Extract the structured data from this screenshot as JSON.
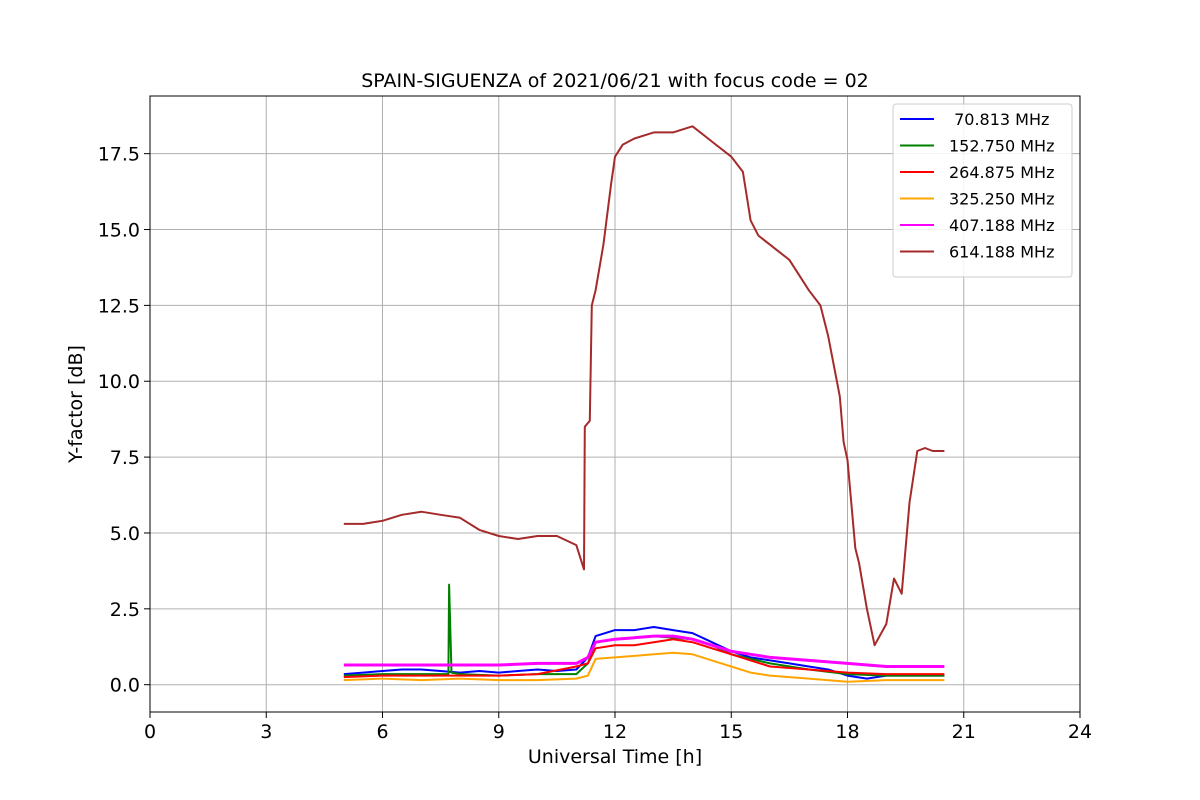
{
  "chart_data": {
    "type": "line",
    "title": "SPAIN-SIGUENZA of 2021/06/21 with focus code = 02",
    "xlabel": "Universal Time [h]",
    "ylabel": "Y-factor [dB]",
    "xlim": [
      0,
      24
    ],
    "ylim": [
      -0.9,
      19.4
    ],
    "x_ticks": [
      0,
      3,
      6,
      9,
      12,
      15,
      18,
      21,
      24
    ],
    "y_ticks": [
      0.0,
      2.5,
      5.0,
      7.5,
      10.0,
      12.5,
      15.0,
      17.5
    ],
    "x_tick_labels": [
      "0",
      "3",
      "6",
      "9",
      "12",
      "15",
      "18",
      "21",
      "24"
    ],
    "y_tick_labels": [
      "0.0",
      "2.5",
      "5.0",
      "7.5",
      "10.0",
      "12.5",
      "15.0",
      "17.5"
    ],
    "grid": true,
    "legend_position": "top-right",
    "series": [
      {
        "name": " 70.813 MHz",
        "color": "#0000ff",
        "x": [
          5.0,
          5.5,
          6.0,
          6.5,
          7.0,
          7.5,
          8.0,
          8.5,
          9.0,
          9.5,
          10.0,
          10.5,
          11.0,
          11.3,
          11.5,
          12.0,
          12.5,
          13.0,
          13.5,
          14.0,
          14.5,
          15.0,
          15.5,
          16.0,
          16.5,
          17.0,
          17.5,
          18.0,
          18.5,
          19.0,
          19.5,
          20.0,
          20.5
        ],
        "y": [
          0.35,
          0.4,
          0.45,
          0.5,
          0.5,
          0.45,
          0.4,
          0.45,
          0.4,
          0.45,
          0.5,
          0.45,
          0.5,
          0.9,
          1.6,
          1.8,
          1.8,
          1.9,
          1.8,
          1.7,
          1.4,
          1.1,
          0.9,
          0.8,
          0.7,
          0.6,
          0.5,
          0.3,
          0.2,
          0.3,
          0.3,
          0.3,
          0.3
        ]
      },
      {
        "name": "152.750 MHz",
        "color": "#008000",
        "x": [
          5.0,
          6.0,
          7.0,
          7.7,
          7.72,
          7.78,
          8.0,
          9.0,
          10.0,
          11.0,
          11.3,
          11.5,
          12.0,
          12.5,
          13.0,
          13.5,
          14.0,
          14.5,
          15.0,
          15.5,
          16.0,
          17.0,
          18.0,
          19.0,
          20.0,
          20.5
        ],
        "y": [
          0.3,
          0.35,
          0.35,
          0.35,
          3.3,
          0.4,
          0.35,
          0.3,
          0.35,
          0.35,
          0.7,
          1.4,
          1.5,
          1.55,
          1.6,
          1.55,
          1.5,
          1.3,
          1.0,
          0.85,
          0.7,
          0.5,
          0.35,
          0.3,
          0.3,
          0.3
        ]
      },
      {
        "name": "264.875 MHz",
        "color": "#ff0000",
        "x": [
          5.0,
          6.0,
          7.0,
          8.0,
          9.0,
          10.0,
          11.0,
          11.3,
          11.5,
          12.0,
          12.5,
          13.0,
          13.5,
          14.0,
          14.5,
          15.0,
          15.5,
          16.0,
          17.0,
          18.0,
          19.0,
          20.0,
          20.5
        ],
        "y": [
          0.25,
          0.3,
          0.3,
          0.3,
          0.3,
          0.35,
          0.6,
          0.7,
          1.2,
          1.3,
          1.3,
          1.4,
          1.5,
          1.4,
          1.2,
          1.0,
          0.8,
          0.6,
          0.5,
          0.4,
          0.35,
          0.35,
          0.35
        ]
      },
      {
        "name": "325.250 MHz",
        "color": "#ffa500",
        "x": [
          5.0,
          6.0,
          7.0,
          8.0,
          9.0,
          10.0,
          11.0,
          11.3,
          11.5,
          12.0,
          12.5,
          13.0,
          13.5,
          14.0,
          14.5,
          15.0,
          15.5,
          16.0,
          17.0,
          18.0,
          19.0,
          20.0,
          20.5
        ],
        "y": [
          0.15,
          0.2,
          0.15,
          0.2,
          0.15,
          0.15,
          0.2,
          0.3,
          0.85,
          0.9,
          0.95,
          1.0,
          1.05,
          1.0,
          0.8,
          0.6,
          0.4,
          0.3,
          0.2,
          0.1,
          0.15,
          0.15,
          0.15
        ]
      },
      {
        "name": "407.188 MHz",
        "color": "#ff00ff",
        "x": [
          5.0,
          6.0,
          7.0,
          8.0,
          9.0,
          10.0,
          11.0,
          11.3,
          11.5,
          12.0,
          12.5,
          13.0,
          13.5,
          14.0,
          14.5,
          15.0,
          15.5,
          16.0,
          17.0,
          18.0,
          19.0,
          20.0,
          20.5
        ],
        "y": [
          0.65,
          0.65,
          0.65,
          0.65,
          0.65,
          0.7,
          0.7,
          0.9,
          1.4,
          1.5,
          1.55,
          1.6,
          1.6,
          1.5,
          1.3,
          1.1,
          1.0,
          0.9,
          0.8,
          0.7,
          0.6,
          0.6,
          0.6
        ]
      },
      {
        "name": "614.188 MHz",
        "color": "#a52a2a",
        "x": [
          5.0,
          5.5,
          6.0,
          6.5,
          7.0,
          7.5,
          8.0,
          8.5,
          9.0,
          9.5,
          10.0,
          10.5,
          11.0,
          11.2,
          11.22,
          11.35,
          11.4,
          11.5,
          11.7,
          11.9,
          12.0,
          12.2,
          12.5,
          13.0,
          13.5,
          14.0,
          14.3,
          14.6,
          15.0,
          15.3,
          15.5,
          15.7,
          16.0,
          16.5,
          17.0,
          17.3,
          17.5,
          17.8,
          17.9,
          18.0,
          18.2,
          18.3,
          18.5,
          18.7,
          19.0,
          19.2,
          19.4,
          19.6,
          19.8,
          20.0,
          20.2,
          20.5
        ],
        "y": [
          5.3,
          5.3,
          5.4,
          5.6,
          5.7,
          5.6,
          5.5,
          5.1,
          4.9,
          4.8,
          4.9,
          4.9,
          4.6,
          3.8,
          8.5,
          8.7,
          12.5,
          13.0,
          14.5,
          16.5,
          17.4,
          17.8,
          18.0,
          18.2,
          18.2,
          18.4,
          18.1,
          17.8,
          17.4,
          16.9,
          15.3,
          14.8,
          14.5,
          14.0,
          13.0,
          12.5,
          11.5,
          9.5,
          8.0,
          7.4,
          4.5,
          4.0,
          2.5,
          1.3,
          2.0,
          3.5,
          3.0,
          6.0,
          7.7,
          7.8,
          7.7,
          7.7
        ]
      }
    ]
  }
}
